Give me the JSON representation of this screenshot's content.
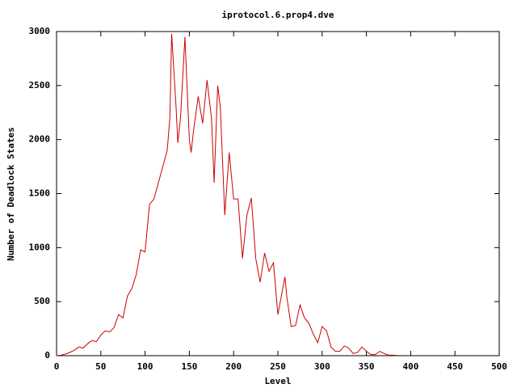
{
  "chart_data": {
    "type": "line",
    "title": "iprotocol.6.prop4.dve",
    "xlabel": "Level",
    "ylabel": "Number of Deadlock States",
    "x": [
      0,
      5,
      10,
      15,
      20,
      25,
      30,
      35,
      40,
      45,
      50,
      55,
      60,
      65,
      70,
      75,
      80,
      85,
      90,
      95,
      100,
      105,
      110,
      115,
      120,
      125,
      128,
      130,
      135,
      137,
      140,
      145,
      150,
      152,
      155,
      160,
      165,
      170,
      175,
      178,
      182,
      185,
      190,
      195,
      200,
      205,
      210,
      215,
      220,
      225,
      230,
      235,
      240,
      245,
      250,
      255,
      258,
      260,
      265,
      270,
      275,
      280,
      285,
      290,
      295,
      300,
      305,
      310,
      315,
      320,
      325,
      330,
      335,
      340,
      345,
      350,
      355,
      360,
      365,
      370,
      375,
      380,
      385
    ],
    "series": [
      {
        "name": "Number of Deadlock States",
        "color": "#cc0000",
        "values": [
          0,
          5,
          15,
          30,
          50,
          80,
          70,
          110,
          140,
          130,
          190,
          230,
          220,
          260,
          380,
          350,
          550,
          620,
          750,
          980,
          960,
          1400,
          1450,
          1600,
          1750,
          1900,
          2200,
          2980,
          2300,
          1970,
          2200,
          2950,
          2000,
          1880,
          2100,
          2400,
          2150,
          2550,
          2200,
          1600,
          2500,
          2300,
          1300,
          1880,
          1450,
          1450,
          900,
          1300,
          1460,
          900,
          680,
          950,
          780,
          860,
          380,
          600,
          730,
          550,
          270,
          280,
          470,
          350,
          300,
          200,
          120,
          270,
          230,
          80,
          40,
          40,
          90,
          70,
          20,
          30,
          80,
          40,
          10,
          10,
          40,
          20,
          5,
          5,
          2
        ]
      }
    ],
    "xlim": [
      0,
      500
    ],
    "ylim": [
      0,
      3000
    ],
    "xticks": [
      0,
      50,
      100,
      150,
      200,
      250,
      300,
      350,
      400,
      450,
      500
    ],
    "yticks": [
      0,
      500,
      1000,
      1500,
      2000,
      2500,
      3000
    ]
  }
}
